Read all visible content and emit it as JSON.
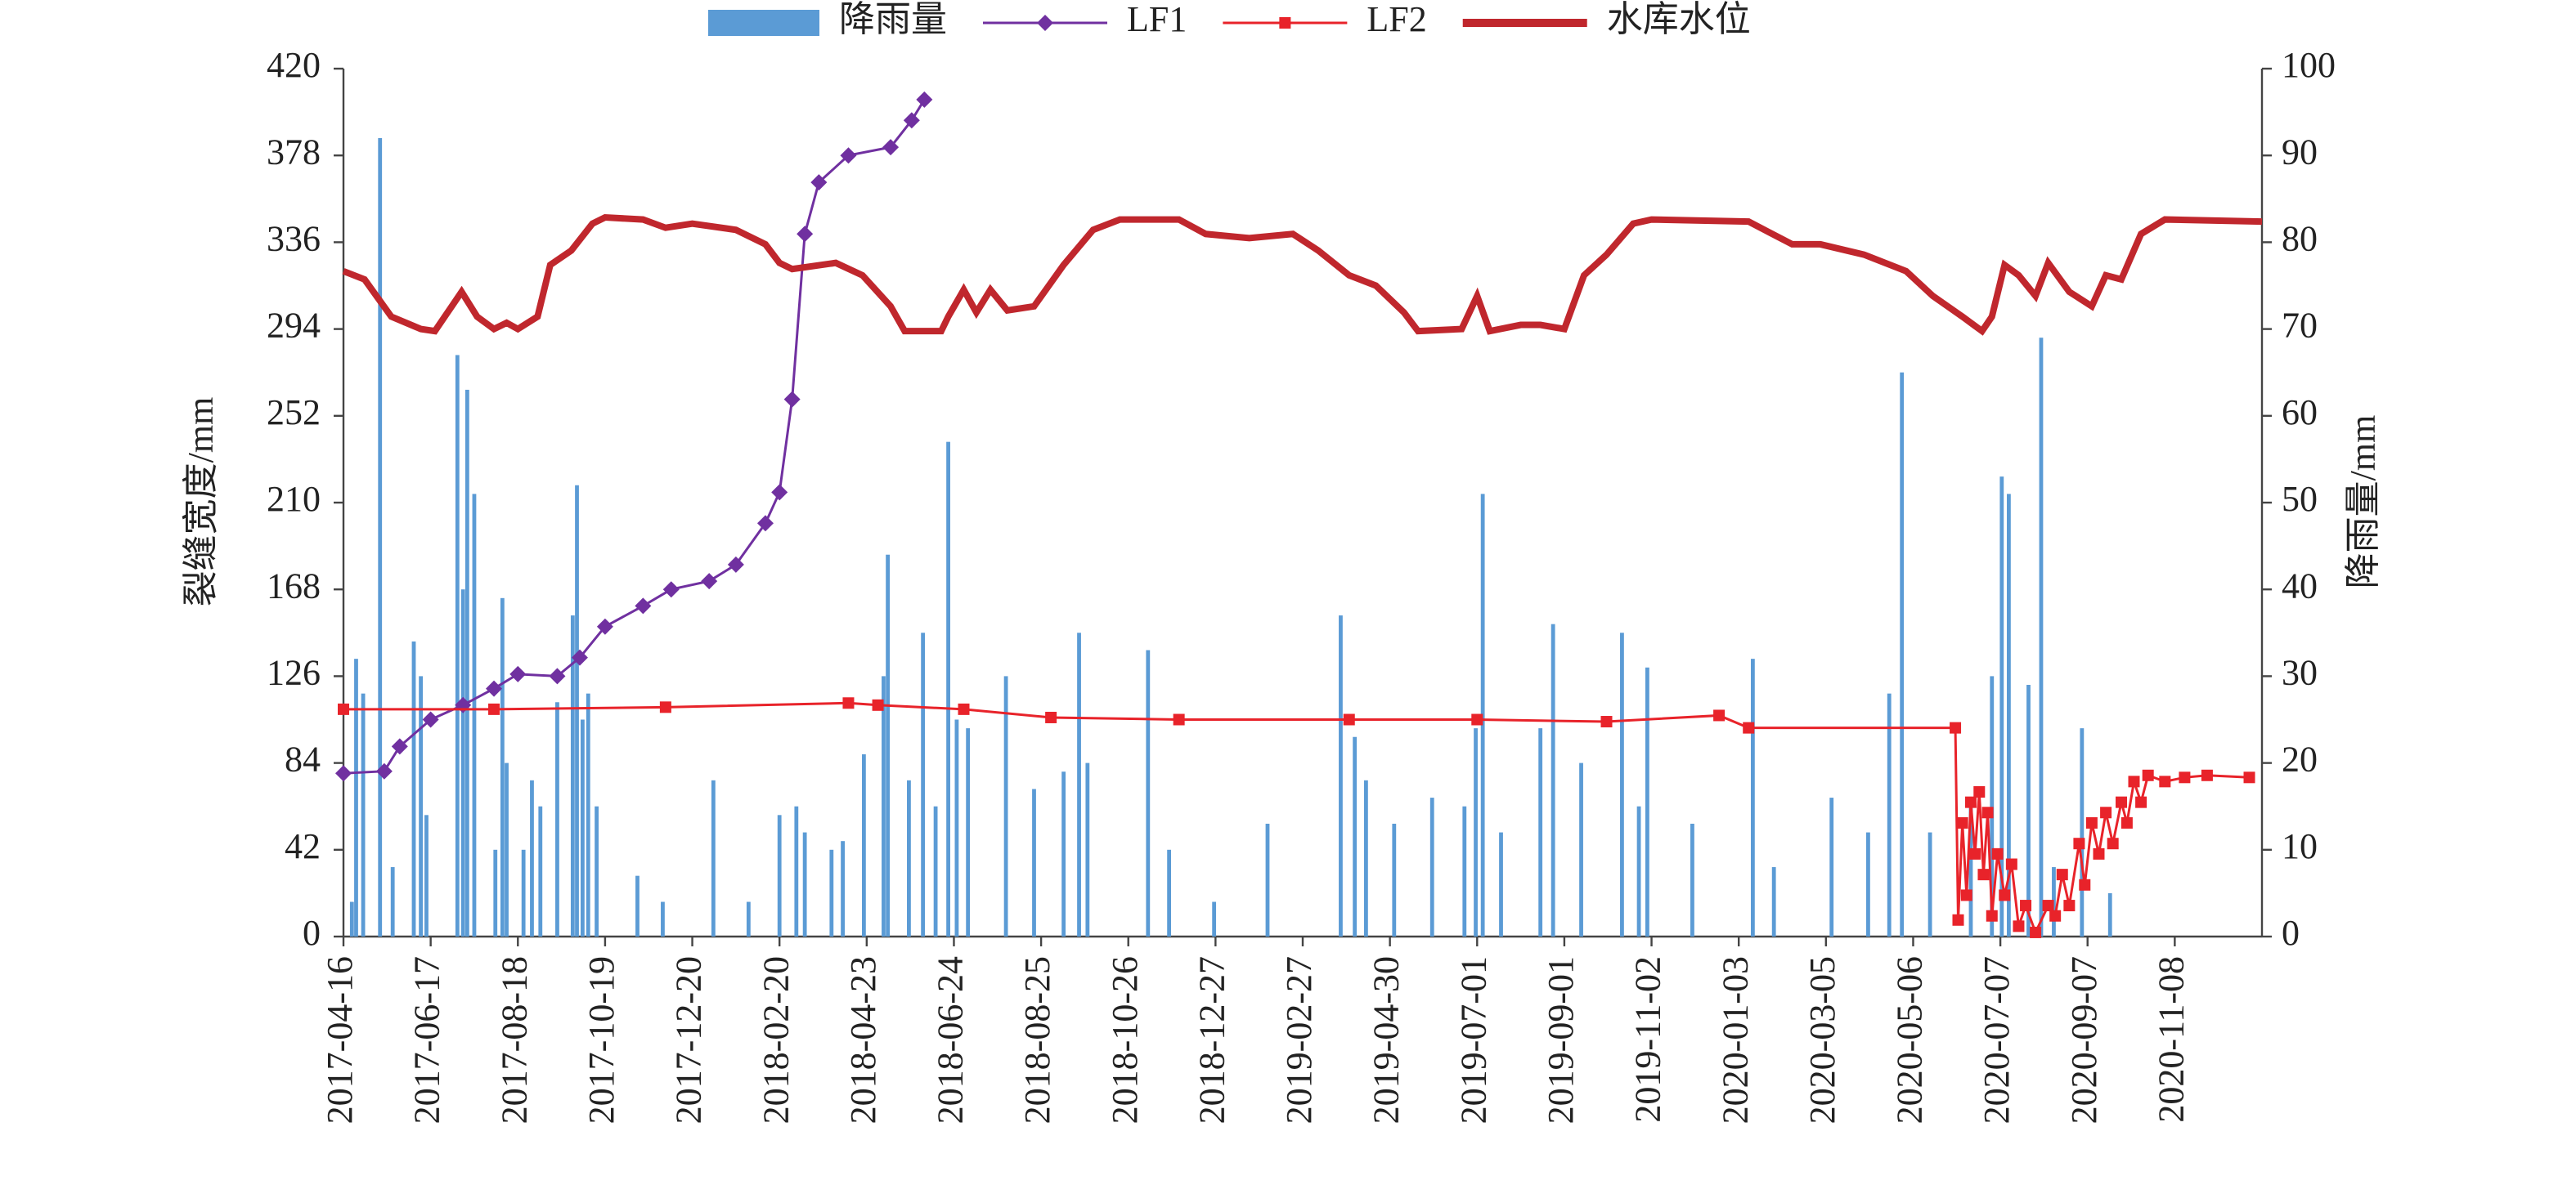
{
  "chart_data": {
    "type": "combo",
    "y_label": "裂缝宽度/mm",
    "y2_label": "降雨量/mm",
    "xlim": [
      "2017-04-16",
      "2021-01-09"
    ],
    "xticks": [
      "2017-04-16",
      "2017-06-17",
      "2017-08-18",
      "2017-10-19",
      "2017-12-20",
      "2018-02-20",
      "2018-04-23",
      "2018-06-24",
      "2018-08-25",
      "2018-10-26",
      "2018-12-27",
      "2019-02-27",
      "2019-04-30",
      "2019-07-01",
      "2019-09-01",
      "2019-11-02",
      "2020-01-03",
      "2020-03-05",
      "2020-05-06",
      "2020-07-07",
      "2020-09-07",
      "2020-11-08"
    ],
    "ylim": [
      0,
      420
    ],
    "yticks": [
      0,
      42,
      84,
      126,
      168,
      210,
      252,
      294,
      336,
      378,
      420
    ],
    "y2lim": [
      0,
      100
    ],
    "y2ticks": [
      0,
      10,
      20,
      30,
      40,
      50,
      60,
      70,
      80,
      90,
      100
    ],
    "legend": "top",
    "series": [
      {
        "name": "降雨量",
        "type": "bar",
        "axis": "y2",
        "color": "#5b9bd5",
        "x": [
          "2017-04-22",
          "2017-04-25",
          "2017-04-30",
          "2017-05-12",
          "2017-05-21",
          "2017-06-05",
          "2017-06-10",
          "2017-06-14",
          "2017-07-06",
          "2017-07-10",
          "2017-07-13",
          "2017-07-18",
          "2017-08-02",
          "2017-08-07",
          "2017-08-10",
          "2017-08-22",
          "2017-08-28",
          "2017-09-03",
          "2017-09-15",
          "2017-09-26",
          "2017-09-29",
          "2017-10-03",
          "2017-10-07",
          "2017-10-13",
          "2017-11-11",
          "2017-11-29",
          "2018-01-04",
          "2018-01-29",
          "2018-02-20",
          "2018-03-04",
          "2018-03-10",
          "2018-03-29",
          "2018-04-06",
          "2018-04-21",
          "2018-05-05",
          "2018-05-08",
          "2018-05-23",
          "2018-06-02",
          "2018-06-11",
          "2018-06-20",
          "2018-06-26",
          "2018-07-04",
          "2018-07-31",
          "2018-08-20",
          "2018-09-10",
          "2018-09-21",
          "2018-09-27",
          "2018-11-09",
          "2018-11-24",
          "2018-12-26",
          "2019-02-02",
          "2019-03-26",
          "2019-04-05",
          "2019-04-13",
          "2019-05-03",
          "2019-05-30",
          "2019-06-22",
          "2019-06-30",
          "2019-07-05",
          "2019-07-18",
          "2019-08-15",
          "2019-08-24",
          "2019-09-13",
          "2019-10-12",
          "2019-10-24",
          "2019-10-30",
          "2019-12-01",
          "2020-01-13",
          "2020-01-28",
          "2020-03-09",
          "2020-04-04",
          "2020-04-19",
          "2020-04-28",
          "2020-05-18",
          "2020-06-16",
          "2020-07-01",
          "2020-07-08",
          "2020-07-13",
          "2020-07-27",
          "2020-08-05",
          "2020-08-14",
          "2020-09-03",
          "2020-09-23"
        ],
        "values": [
          4,
          32,
          28,
          92,
          8,
          34,
          30,
          14,
          67,
          40,
          63,
          51,
          10,
          39,
          20,
          10,
          18,
          15,
          27,
          37,
          52,
          25,
          28,
          15,
          7,
          4,
          18,
          4,
          14,
          15,
          12,
          10,
          11,
          21,
          30,
          44,
          18,
          35,
          15,
          57,
          25,
          24,
          30,
          17,
          19,
          35,
          20,
          33,
          10,
          4,
          13,
          37,
          23,
          18,
          13,
          16,
          15,
          24,
          51,
          12,
          24,
          36,
          20,
          35,
          15,
          31,
          13,
          32,
          8,
          16,
          12,
          28,
          65,
          12,
          15,
          30,
          53,
          51,
          29,
          69,
          8,
          24,
          5
        ]
      },
      {
        "name": "LF1",
        "type": "line",
        "axis": "y",
        "color": "#7030a0",
        "marker": "diamond",
        "x": [
          "2017-04-16",
          "2017-05-15",
          "2017-05-26",
          "2017-06-17",
          "2017-07-10",
          "2017-08-01",
          "2017-08-18",
          "2017-09-15",
          "2017-10-01",
          "2017-10-19",
          "2017-11-15",
          "2017-12-05",
          "2018-01-01",
          "2018-01-20",
          "2018-02-10",
          "2018-02-20",
          "2018-03-01",
          "2018-03-10",
          "2018-03-20",
          "2018-04-10",
          "2018-05-10",
          "2018-05-25",
          "2018-06-03"
        ],
        "values": [
          79,
          80,
          92,
          105,
          112,
          120,
          127,
          126,
          135,
          150,
          160,
          168,
          172,
          180,
          200,
          215,
          260,
          340,
          365,
          378,
          382,
          395,
          405
        ]
      },
      {
        "name": "LF2",
        "type": "line",
        "axis": "y",
        "color": "#e8232a",
        "marker": "square",
        "x": [
          "2017-04-16",
          "2017-08-01",
          "2017-12-01",
          "2018-04-10",
          "2018-05-01",
          "2018-07-01",
          "2018-09-01",
          "2018-12-01",
          "2019-04-01",
          "2019-07-01",
          "2019-10-01",
          "2019-12-20",
          "2020-01-10",
          "2020-06-05",
          "2020-06-07",
          "2020-06-10",
          "2020-06-13",
          "2020-06-16",
          "2020-06-19",
          "2020-06-22",
          "2020-06-25",
          "2020-06-28",
          "2020-07-01",
          "2020-07-05",
          "2020-07-10",
          "2020-07-15",
          "2020-07-20",
          "2020-07-25",
          "2020-08-01",
          "2020-08-10",
          "2020-08-15",
          "2020-08-20",
          "2020-08-25",
          "2020-09-01",
          "2020-09-05",
          "2020-09-10",
          "2020-09-15",
          "2020-09-20",
          "2020-09-25",
          "2020-10-01",
          "2020-10-05",
          "2020-10-10",
          "2020-10-15",
          "2020-10-20",
          "2020-11-01",
          "2020-11-15",
          "2020-12-01",
          "2020-12-31"
        ],
        "values": [
          110,
          110,
          111,
          113,
          112,
          110,
          106,
          105,
          105,
          105,
          104,
          107,
          101,
          101,
          8,
          55,
          20,
          65,
          40,
          70,
          30,
          60,
          10,
          40,
          20,
          35,
          5,
          15,
          2,
          15,
          10,
          30,
          15,
          45,
          25,
          55,
          40,
          60,
          45,
          65,
          55,
          75,
          65,
          78,
          75,
          77,
          78,
          77
        ]
      },
      {
        "name": "水库水位",
        "type": "line",
        "axis": "y",
        "color": "#c0272d",
        "x": [
          "2017-04-16",
          "2017-05-01",
          "2017-05-20",
          "2017-06-10",
          "2017-06-20",
          "2017-07-01",
          "2017-07-09",
          "2017-07-20",
          "2017-08-01",
          "2017-08-10",
          "2017-08-18",
          "2017-09-01",
          "2017-09-10",
          "2017-09-25",
          "2017-10-10",
          "2017-10-19",
          "2017-11-15",
          "2017-12-01",
          "2017-12-20",
          "2018-01-20",
          "2018-02-10",
          "2018-02-20",
          "2018-03-01",
          "2018-04-01",
          "2018-04-20",
          "2018-05-10",
          "2018-05-20",
          "2018-06-15",
          "2018-06-20",
          "2018-07-01",
          "2018-07-10",
          "2018-07-20",
          "2018-08-01",
          "2018-08-20",
          "2018-09-10",
          "2018-10-01",
          "2018-10-20",
          "2018-12-01",
          "2018-12-20",
          "2019-01-20",
          "2019-02-20",
          "2019-03-10",
          "2019-04-01",
          "2019-04-20",
          "2019-05-10",
          "2019-05-20",
          "2019-06-20",
          "2019-07-01",
          "2019-07-10",
          "2019-08-01",
          "2019-08-15",
          "2019-09-01",
          "2019-09-15",
          "2019-10-01",
          "2019-10-20",
          "2019-11-02",
          "2020-01-10",
          "2020-02-10",
          "2020-03-01",
          "2020-04-01",
          "2020-05-01",
          "2020-05-20",
          "2020-06-10",
          "2020-06-24",
          "2020-07-01",
          "2020-07-10",
          "2020-07-20",
          "2020-08-01",
          "2020-08-10",
          "2020-08-25",
          "2020-09-10",
          "2020-09-20",
          "2020-10-01",
          "2020-10-15",
          "2020-11-01",
          "2021-01-09"
        ],
        "values": [
          322,
          318,
          300,
          294,
          293,
          304,
          312,
          300,
          294,
          297,
          294,
          300,
          325,
          332,
          345,
          348,
          347,
          343,
          345,
          342,
          335,
          326,
          323,
          326,
          320,
          305,
          293,
          293,
          300,
          313,
          302,
          313,
          303,
          305,
          325,
          342,
          347,
          347,
          340,
          338,
          340,
          332,
          320,
          315,
          302,
          293,
          294,
          310,
          293,
          296,
          296,
          294,
          320,
          330,
          345,
          347,
          346,
          335,
          335,
          330,
          322,
          310,
          300,
          293,
          300,
          325,
          320,
          310,
          326,
          312,
          305,
          320,
          318,
          340,
          347,
          346
        ]
      }
    ]
  }
}
